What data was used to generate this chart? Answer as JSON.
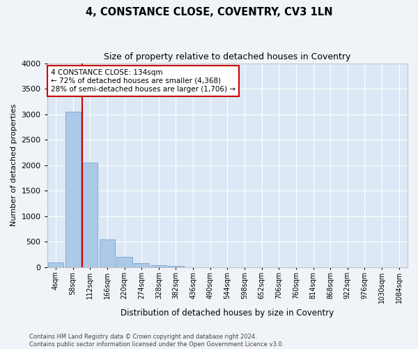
{
  "title": "4, CONSTANCE CLOSE, COVENTRY, CV3 1LN",
  "subtitle": "Size of property relative to detached houses in Coventry",
  "xlabel": "Distribution of detached houses by size in Coventry",
  "ylabel": "Number of detached properties",
  "bar_color": "#adc9e8",
  "bar_edge_color": "#6699cc",
  "background_color": "#dce8f5",
  "grid_color": "#ffffff",
  "fig_background": "#f0f4f8",
  "categories": [
    "4sqm",
    "58sqm",
    "112sqm",
    "166sqm",
    "220sqm",
    "274sqm",
    "328sqm",
    "382sqm",
    "436sqm",
    "490sqm",
    "544sqm",
    "598sqm",
    "652sqm",
    "706sqm",
    "760sqm",
    "814sqm",
    "868sqm",
    "922sqm",
    "976sqm",
    "1030sqm",
    "1084sqm"
  ],
  "values": [
    100,
    3050,
    2050,
    540,
    200,
    75,
    40,
    30,
    0,
    0,
    0,
    0,
    0,
    0,
    0,
    0,
    0,
    0,
    0,
    0,
    0
  ],
  "ylim": [
    0,
    4000
  ],
  "yticks": [
    0,
    500,
    1000,
    1500,
    2000,
    2500,
    3000,
    3500,
    4000
  ],
  "vline_x": 1.55,
  "vline_color": "#cc0000",
  "annotation_text": "4 CONSTANCE CLOSE: 134sqm\n← 72% of detached houses are smaller (4,368)\n28% of semi-detached houses are larger (1,706) →",
  "annotation_box_facecolor": "#ffffff",
  "annotation_box_edgecolor": "#cc0000",
  "footer1": "Contains HM Land Registry data © Crown copyright and database right 2024.",
  "footer2": "Contains public sector information licensed under the Open Government Licence v3.0."
}
